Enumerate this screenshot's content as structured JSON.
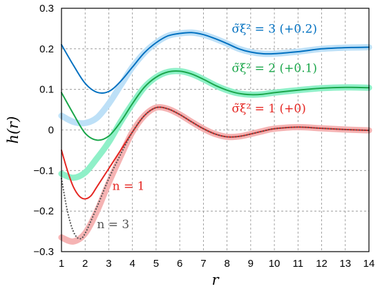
{
  "chart_data": {
    "type": "line",
    "title": "",
    "xlabel": "r",
    "ylabel": "h(r)",
    "xlim": [
      1,
      14
    ],
    "ylim": [
      -0.3,
      0.3
    ],
    "xticks": [
      1,
      2,
      3,
      4,
      5,
      6,
      7,
      8,
      9,
      10,
      11,
      12,
      13,
      14
    ],
    "yticks": [
      {
        "value": -0.3,
        "label": "−0.3"
      },
      {
        "value": -0.2,
        "label": "−0.2"
      },
      {
        "value": -0.1,
        "label": "−0.1"
      },
      {
        "value": 0,
        "label": "0"
      },
      {
        "value": 0.1,
        "label": "0.1"
      },
      {
        "value": 0.2,
        "label": "0.2"
      },
      {
        "value": 0.3,
        "label": "0.3"
      }
    ],
    "grid": true,
    "series": [
      {
        "color": "#bde0f7",
        "style": "thick",
        "x": [
          1.0,
          1.5,
          2.0,
          2.5,
          3.0,
          3.5,
          4.0,
          4.5,
          5.0,
          5.5,
          6.0,
          6.5,
          7.0,
          7.5,
          8.0,
          8.5,
          9.0,
          9.5,
          10.0,
          11.0,
          12.0,
          13.0,
          14.0
        ],
        "y": [
          0.035,
          0.02,
          0.017,
          0.03,
          0.065,
          0.11,
          0.155,
          0.19,
          0.215,
          0.232,
          0.238,
          0.24,
          0.235,
          0.225,
          0.213,
          0.2,
          0.192,
          0.188,
          0.188,
          0.193,
          0.2,
          0.203,
          0.204
        ]
      },
      {
        "color": "#0070c0",
        "style": "thin",
        "x": [
          1.0,
          1.5,
          2.0,
          2.5,
          3.0,
          3.5,
          4.0,
          4.5,
          5.0,
          5.5,
          6.0,
          6.5,
          7.0,
          7.5,
          8.0,
          8.5,
          9.0,
          9.5,
          10.0,
          11.0,
          12.0,
          13.0,
          14.0
        ],
        "y": [
          0.21,
          0.16,
          0.115,
          0.093,
          0.095,
          0.12,
          0.155,
          0.19,
          0.215,
          0.232,
          0.238,
          0.24,
          0.235,
          0.225,
          0.213,
          0.2,
          0.192,
          0.188,
          0.188,
          0.193,
          0.2,
          0.203,
          0.204
        ]
      },
      {
        "color": "#8ff0c8",
        "style": "thick",
        "x": [
          1.0,
          1.5,
          2.0,
          2.5,
          3.0,
          3.5,
          4.0,
          4.5,
          5.0,
          5.5,
          6.0,
          6.5,
          7.0,
          7.5,
          8.0,
          8.5,
          9.0,
          9.5,
          10.0,
          11.0,
          12.0,
          13.0,
          14.0
        ],
        "y": [
          -0.108,
          -0.118,
          -0.105,
          -0.07,
          -0.03,
          0.02,
          0.065,
          0.105,
          0.13,
          0.143,
          0.145,
          0.138,
          0.125,
          0.11,
          0.098,
          0.09,
          0.087,
          0.088,
          0.092,
          0.098,
          0.103,
          0.105,
          0.104
        ]
      },
      {
        "color": "#1aa64a",
        "style": "thin",
        "x": [
          1.0,
          1.5,
          2.0,
          2.5,
          3.0,
          3.5,
          4.0,
          4.5,
          5.0,
          5.5,
          6.0,
          6.5,
          7.0,
          7.5,
          8.0,
          8.5,
          9.0,
          9.5,
          10.0,
          11.0,
          12.0,
          13.0,
          14.0
        ],
        "y": [
          0.092,
          0.04,
          -0.008,
          -0.025,
          -0.015,
          0.02,
          0.065,
          0.105,
          0.13,
          0.143,
          0.145,
          0.138,
          0.125,
          0.11,
          0.098,
          0.09,
          0.087,
          0.088,
          0.092,
          0.098,
          0.103,
          0.105,
          0.104
        ]
      },
      {
        "color": "#f5b3b3",
        "style": "thick",
        "x": [
          1.0,
          1.5,
          2.0,
          2.5,
          3.0,
          3.5,
          4.0,
          4.5,
          5.0,
          5.5,
          6.0,
          6.5,
          7.0,
          7.5,
          8.0,
          8.5,
          9.0,
          9.5,
          10.0,
          11.0,
          12.0,
          13.0,
          14.0
        ],
        "y": [
          -0.265,
          -0.275,
          -0.255,
          -0.2,
          -0.13,
          -0.065,
          -0.005,
          0.035,
          0.055,
          0.052,
          0.038,
          0.02,
          0.003,
          -0.01,
          -0.017,
          -0.016,
          -0.01,
          -0.003,
          0.003,
          0.007,
          0.004,
          0.001,
          -0.001
        ]
      },
      {
        "color": "#e52521",
        "style": "thin",
        "x": [
          1.0,
          1.25,
          1.5,
          1.75,
          2.0,
          2.25,
          2.5,
          3.0,
          3.5,
          4.0,
          4.5,
          5.0,
          5.5,
          6.0,
          6.5,
          7.0,
          7.5,
          8.0,
          8.5,
          9.0,
          9.5,
          10.0,
          11.0,
          12.0,
          13.0,
          14.0
        ],
        "y": [
          -0.05,
          -0.1,
          -0.14,
          -0.163,
          -0.17,
          -0.162,
          -0.14,
          -0.095,
          -0.05,
          -0.005,
          0.035,
          0.055,
          0.052,
          0.038,
          0.02,
          0.003,
          -0.01,
          -0.017,
          -0.016,
          -0.01,
          -0.003,
          0.003,
          0.007,
          0.004,
          0.001,
          -0.001
        ]
      },
      {
        "color": "#555555",
        "style": "dotted",
        "x": [
          1.0,
          1.25,
          1.5,
          1.75,
          2.0,
          2.5,
          3.0,
          3.5,
          4.0,
          4.5,
          5.0,
          5.5,
          6.0,
          6.5,
          7.0,
          7.5,
          8.0,
          8.5,
          9.0,
          9.5,
          10.0,
          11.0,
          12.0,
          13.0,
          14.0
        ],
        "y": [
          -0.12,
          -0.2,
          -0.25,
          -0.268,
          -0.255,
          -0.19,
          -0.12,
          -0.06,
          -0.005,
          0.035,
          0.055,
          0.052,
          0.038,
          0.02,
          0.003,
          -0.01,
          -0.017,
          -0.016,
          -0.01,
          -0.003,
          0.003,
          0.007,
          0.004,
          0.001,
          -0.001
        ]
      }
    ],
    "annotations": [
      {
        "text": "σ̃ξ² = 3  (+0.2)",
        "x": 8.2,
        "y": 0.24,
        "color": "#0070c0"
      },
      {
        "text": "σ̃ξ² = 2  (+0.1)",
        "x": 8.2,
        "y": 0.143,
        "color": "#1aa64a"
      },
      {
        "text": "σ̃ξ² = 1  (+0)",
        "x": 8.2,
        "y": 0.043,
        "color": "#e52521"
      },
      {
        "text": "n = 1",
        "x": 3.15,
        "y": -0.148,
        "color": "#e52521"
      },
      {
        "text": "n = 3",
        "x": 2.5,
        "y": -0.242,
        "color": "#555555"
      }
    ]
  }
}
